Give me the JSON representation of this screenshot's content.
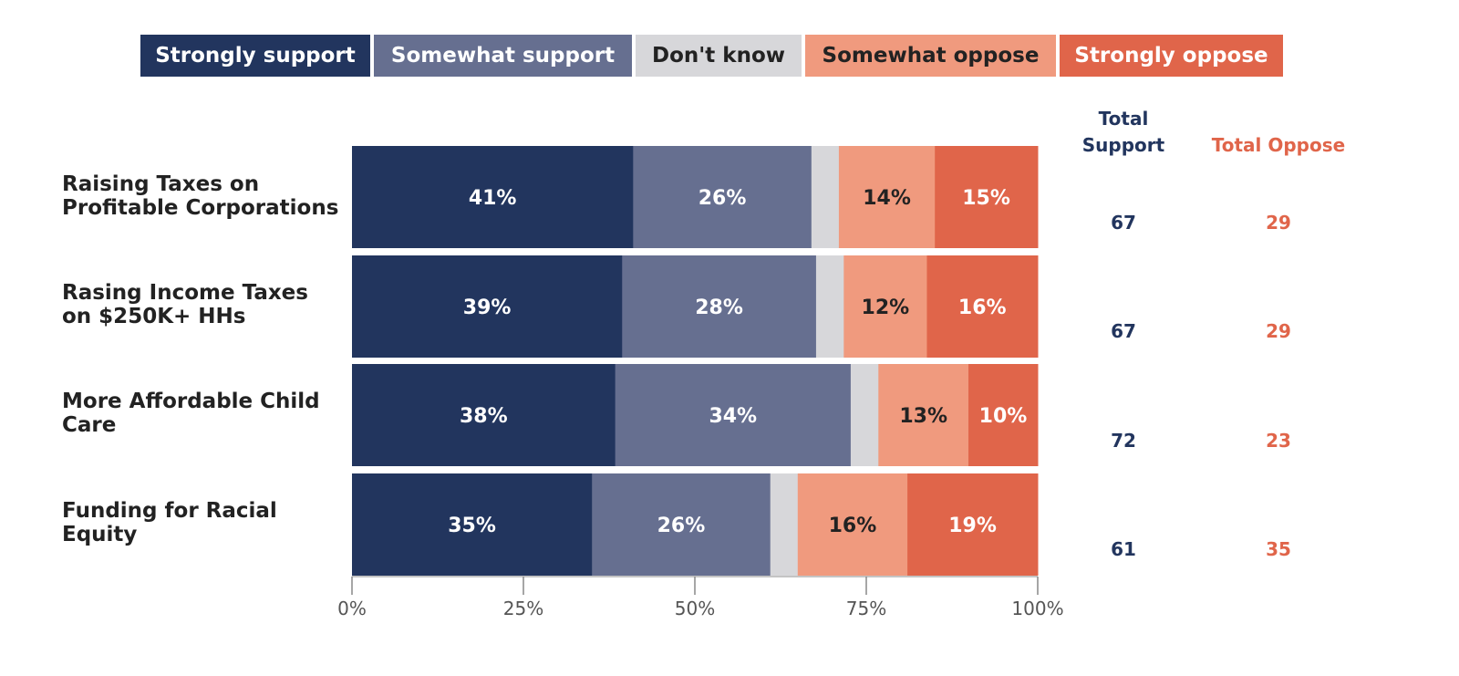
{
  "chart_data": {
    "type": "bar",
    "orientation": "horizontal",
    "stacked": true,
    "categories": [
      "Raising Taxes on Profitable Corporations",
      "Rasing Income Taxes on $250K+ HHs",
      "More Affordable Child Care",
      "Funding for Racial Equity"
    ],
    "category_lines": [
      [
        "Raising Taxes on",
        "Profitable Corporations"
      ],
      [
        "Rasing Income Taxes",
        "on $250K+ HHs"
      ],
      [
        "More Affordable Child",
        "Care"
      ],
      [
        "Funding for Racial",
        "Equity"
      ]
    ],
    "series": [
      {
        "name": "Strongly support",
        "color": "#22355e",
        "label_color": "#ffffff",
        "values": [
          41,
          39,
          38,
          35
        ],
        "labels": [
          "41%",
          "39%",
          "38%",
          "35%"
        ]
      },
      {
        "name": "Somewhat support",
        "color": "#666f90",
        "label_color": "#ffffff",
        "values": [
          26,
          28,
          34,
          26
        ],
        "labels": [
          "26%",
          "28%",
          "34%",
          "26%"
        ]
      },
      {
        "name": "Don't know",
        "color": "#d7d7da",
        "label_color": "#222222",
        "values": [
          4,
          4,
          4,
          4
        ],
        "labels": [
          "",
          "",
          "",
          ""
        ]
      },
      {
        "name": "Somewhat oppose",
        "color": "#f09a7e",
        "label_color": "#222222",
        "values": [
          14,
          12,
          13,
          16
        ],
        "labels": [
          "14%",
          "12%",
          "13%",
          "16%"
        ]
      },
      {
        "name": "Strongly oppose",
        "color": "#e0654a",
        "label_color": "#ffffff",
        "values": [
          15,
          16,
          10,
          19
        ],
        "labels": [
          "15%",
          "16%",
          "10%",
          "19%"
        ]
      }
    ],
    "xlim": [
      0,
      100
    ],
    "xticks": [
      "0%",
      "25%",
      "50%",
      "75%",
      "100%"
    ],
    "legend_position": "top",
    "totals": {
      "support_header": [
        "Total",
        "Support"
      ],
      "oppose_header": "Total Oppose",
      "support_color": "#22355e",
      "oppose_color": "#e0654a",
      "support": [
        "67",
        "67",
        "72",
        "61"
      ],
      "oppose": [
        "29",
        "29",
        "23",
        "35"
      ]
    }
  }
}
